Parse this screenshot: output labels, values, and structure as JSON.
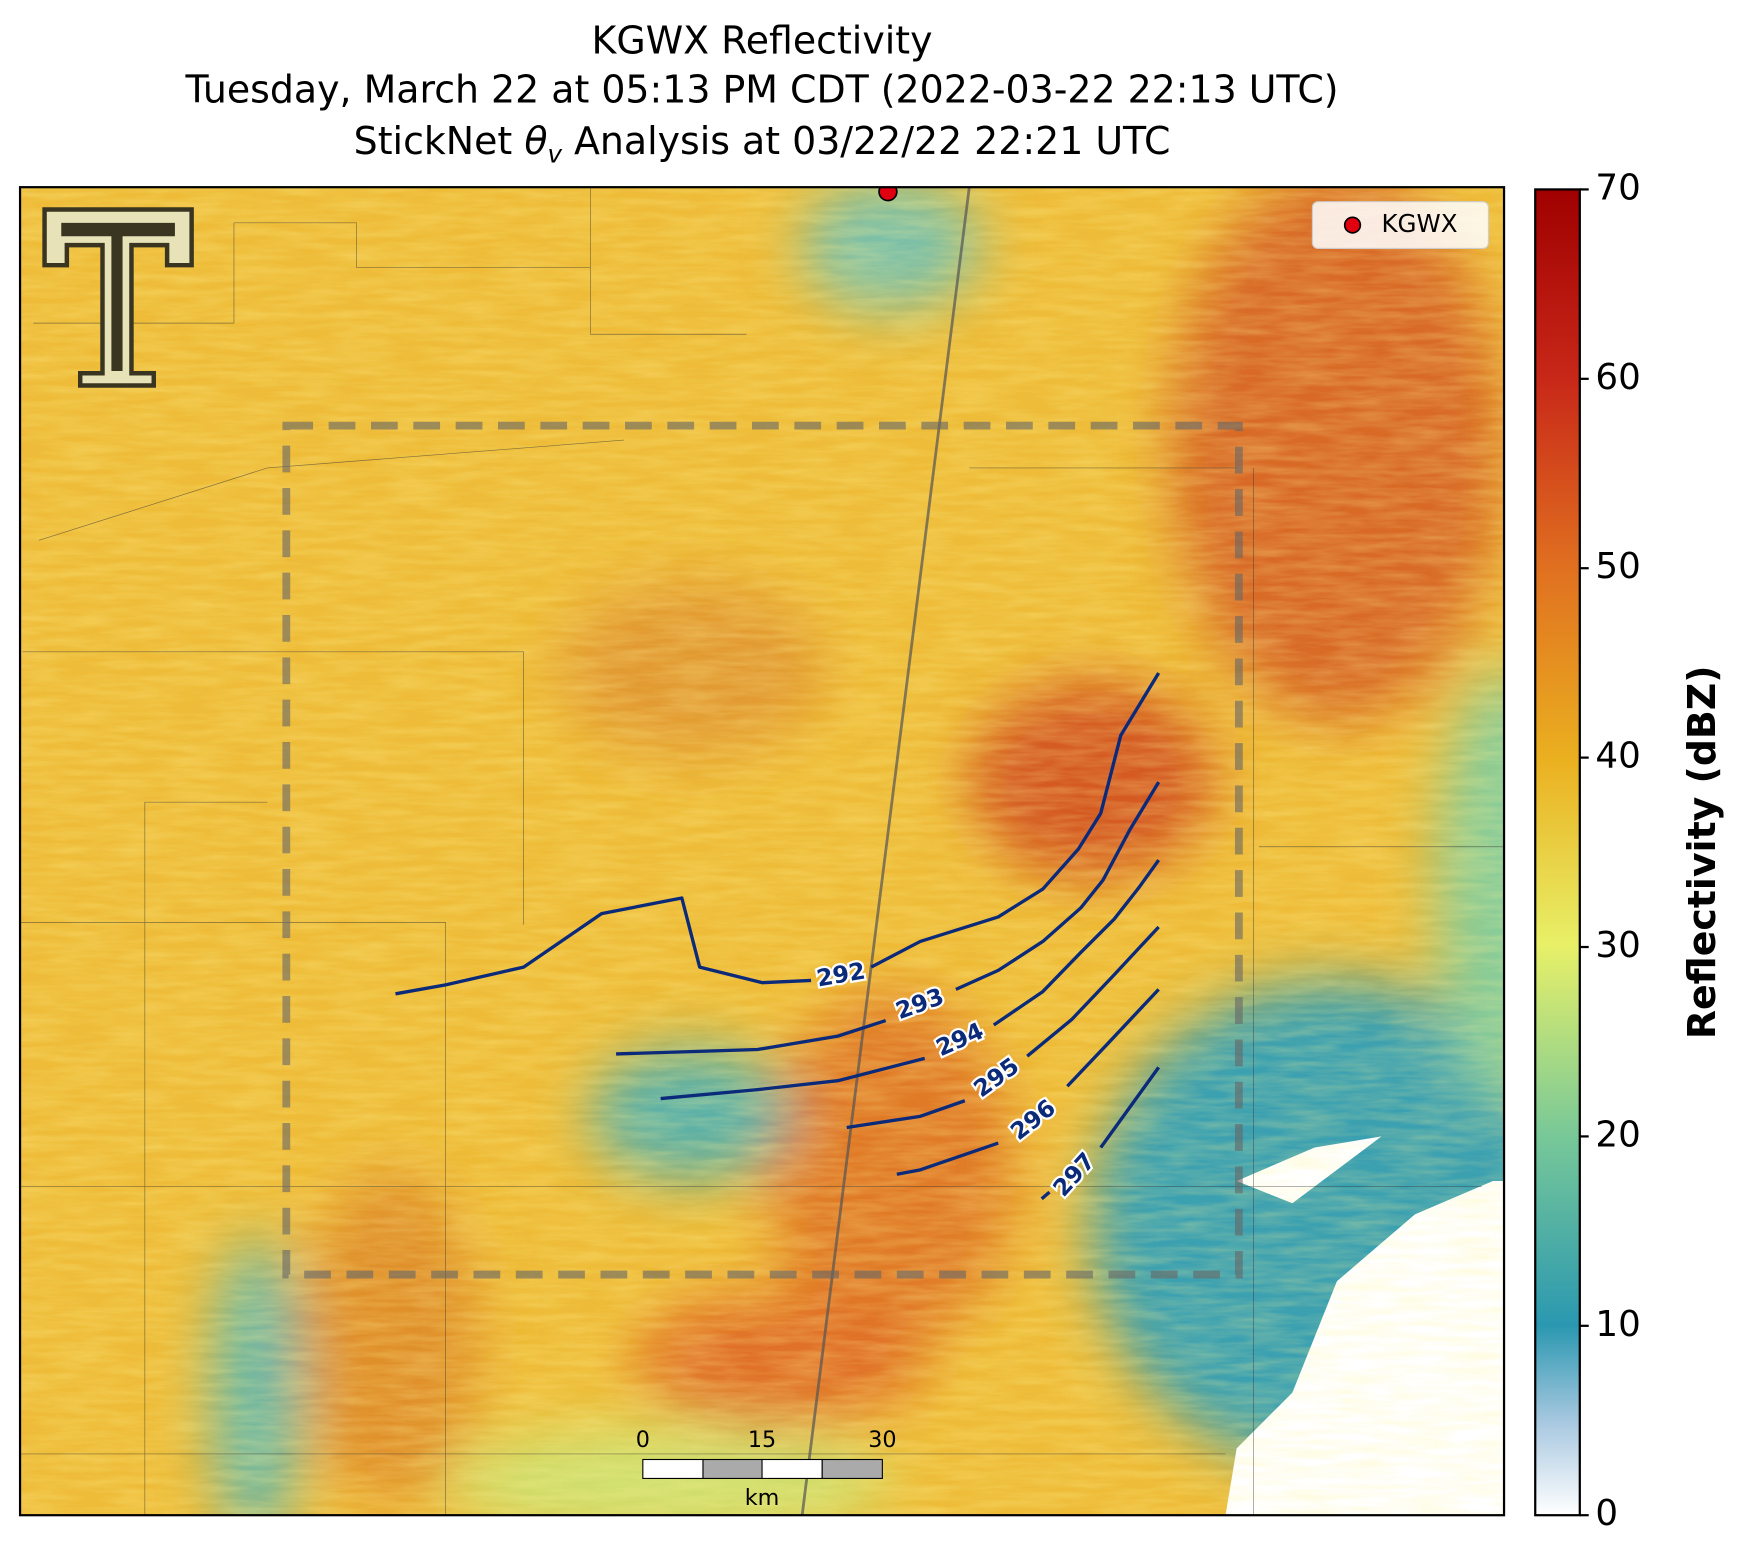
{
  "title_1": "KGWX Reflectivity",
  "title_2": "Tuesday, March 22 at 05:13 PM CDT (2022-03-22 22:13 UTC)",
  "title_3": {
    "prefix": "StickNet ",
    "symbol": "θ",
    "subscript": "v",
    "suffix": " Analysis at 03/22/22 22:21 UTC"
  },
  "legend": {
    "label": "KGWX"
  },
  "colorbar": {
    "label": "Reflectivity (dBZ)",
    "lim": [
      0,
      70
    ],
    "ticks": [
      0,
      10,
      20,
      30,
      40,
      50,
      60,
      70
    ]
  },
  "contours": [
    {
      "label": "292"
    },
    {
      "label": "293"
    },
    {
      "label": "294"
    },
    {
      "label": "295"
    },
    {
      "label": "296"
    },
    {
      "label": "297"
    }
  ],
  "scalebar": {
    "ticks": [
      "0",
      "15",
      "30"
    ],
    "unit": "km"
  }
}
